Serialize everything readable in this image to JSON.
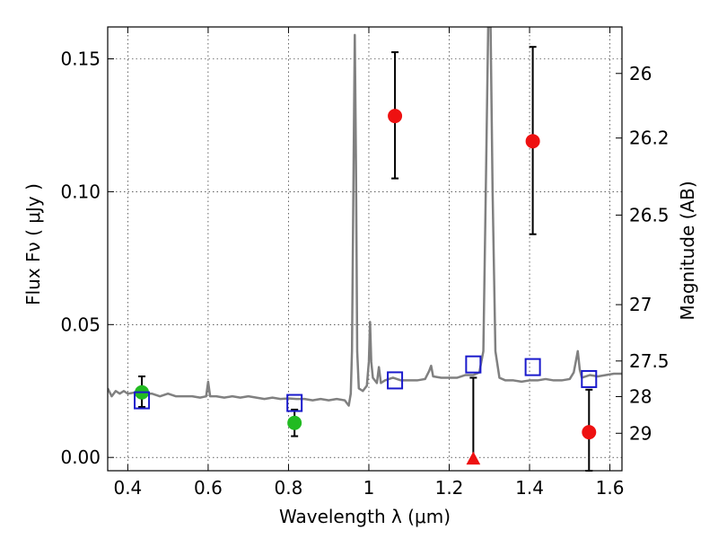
{
  "chart_data": {
    "type": "scatter",
    "xlabel": "Wavelength  λ (μm)",
    "ylabel": "Flux  Fν  ( μJy )",
    "y2label": "Magnitude (AB)",
    "xlim": [
      0.35,
      1.63
    ],
    "ylim": [
      -0.005,
      0.162
    ],
    "grid": true,
    "x_ticks": [
      0.4,
      0.6,
      0.8,
      1.0,
      1.2,
      1.4,
      1.6
    ],
    "x_tick_labels": [
      "0.4",
      "0.6",
      "0.8",
      "1",
      "1.2",
      "1.4",
      "1.6"
    ],
    "y_ticks": [
      0.0,
      0.05,
      0.1,
      0.15
    ],
    "y_tick_labels": [
      "0.00",
      "0.05",
      "0.10",
      "0.15"
    ],
    "y2_ticks": [
      {
        "label": "26",
        "flux": 0.1445
      },
      {
        "label": "26.2",
        "flux": 0.1202
      },
      {
        "label": "26.5",
        "flux": 0.0912
      },
      {
        "label": "27",
        "flux": 0.0575
      },
      {
        "label": "27.5",
        "flux": 0.0363
      },
      {
        "label": "28",
        "flux": 0.0229
      },
      {
        "label": "29",
        "flux": 0.0091
      }
    ],
    "series": [
      {
        "marker": "circle",
        "color": "#22bb22",
        "points": [
          {
            "x": 0.435,
            "y": 0.0245,
            "err_low": 0.019,
            "err_high": 0.0305
          },
          {
            "x": 0.815,
            "y": 0.013,
            "err_low": 0.008,
            "err_high": 0.018
          }
        ]
      },
      {
        "marker": "circle",
        "color": "#ee1111",
        "points": [
          {
            "x": 1.065,
            "y": 0.1285,
            "err_low": 0.105,
            "err_high": 0.1525
          },
          {
            "x": 1.408,
            "y": 0.119,
            "err_low": 0.084,
            "err_high": 0.1545
          },
          {
            "x": 1.548,
            "y": 0.0095,
            "err_low": -0.005,
            "err_high": 0.0255
          }
        ]
      },
      {
        "marker": "triangle",
        "color": "#ee1111",
        "points": [
          {
            "x": 1.26,
            "y": -0.0008,
            "err_low": -0.001,
            "err_high": 0.03
          }
        ]
      },
      {
        "marker": "square",
        "color": "#1a1acc",
        "points": [
          {
            "x": 0.435,
            "y": 0.0215
          },
          {
            "x": 0.815,
            "y": 0.0205
          },
          {
            "x": 1.065,
            "y": 0.029
          },
          {
            "x": 1.26,
            "y": 0.035
          },
          {
            "x": 1.408,
            "y": 0.034
          },
          {
            "x": 1.548,
            "y": 0.0295
          }
        ]
      }
    ],
    "model_spectrum": {
      "color": "#808080",
      "points": [
        [
          0.35,
          0.026
        ],
        [
          0.36,
          0.023
        ],
        [
          0.37,
          0.025
        ],
        [
          0.38,
          0.024
        ],
        [
          0.39,
          0.025
        ],
        [
          0.4,
          0.024
        ],
        [
          0.42,
          0.0245
        ],
        [
          0.44,
          0.024
        ],
        [
          0.46,
          0.024
        ],
        [
          0.48,
          0.023
        ],
        [
          0.5,
          0.024
        ],
        [
          0.52,
          0.023
        ],
        [
          0.54,
          0.023
        ],
        [
          0.56,
          0.023
        ],
        [
          0.58,
          0.0225
        ],
        [
          0.595,
          0.023
        ],
        [
          0.6,
          0.0285
        ],
        [
          0.605,
          0.023
        ],
        [
          0.62,
          0.023
        ],
        [
          0.64,
          0.0225
        ],
        [
          0.66,
          0.023
        ],
        [
          0.68,
          0.0225
        ],
        [
          0.7,
          0.023
        ],
        [
          0.72,
          0.0225
        ],
        [
          0.74,
          0.022
        ],
        [
          0.76,
          0.0225
        ],
        [
          0.78,
          0.022
        ],
        [
          0.8,
          0.0222
        ],
        [
          0.82,
          0.022
        ],
        [
          0.84,
          0.022
        ],
        [
          0.86,
          0.0215
        ],
        [
          0.88,
          0.022
        ],
        [
          0.9,
          0.0215
        ],
        [
          0.92,
          0.022
        ],
        [
          0.94,
          0.0215
        ],
        [
          0.95,
          0.0195
        ],
        [
          0.955,
          0.024
        ],
        [
          0.958,
          0.04
        ],
        [
          0.962,
          0.11
        ],
        [
          0.965,
          0.159
        ],
        [
          0.968,
          0.11
        ],
        [
          0.971,
          0.04
        ],
        [
          0.975,
          0.026
        ],
        [
          0.985,
          0.025
        ],
        [
          0.995,
          0.027
        ],
        [
          1.0,
          0.036
        ],
        [
          1.003,
          0.051
        ],
        [
          1.006,
          0.036
        ],
        [
          1.01,
          0.03
        ],
        [
          1.02,
          0.028
        ],
        [
          1.025,
          0.034
        ],
        [
          1.03,
          0.028
        ],
        [
          1.04,
          0.029
        ],
        [
          1.06,
          0.03
        ],
        [
          1.08,
          0.029
        ],
        [
          1.1,
          0.029
        ],
        [
          1.12,
          0.029
        ],
        [
          1.14,
          0.0295
        ],
        [
          1.15,
          0.0325
        ],
        [
          1.155,
          0.0345
        ],
        [
          1.16,
          0.0305
        ],
        [
          1.18,
          0.03
        ],
        [
          1.2,
          0.03
        ],
        [
          1.22,
          0.03
        ],
        [
          1.24,
          0.031
        ],
        [
          1.26,
          0.031
        ],
        [
          1.275,
          0.032
        ],
        [
          1.285,
          0.04
        ],
        [
          1.292,
          0.11
        ],
        [
          1.297,
          0.162
        ],
        [
          1.303,
          0.162
        ],
        [
          1.308,
          0.1
        ],
        [
          1.315,
          0.04
        ],
        [
          1.325,
          0.03
        ],
        [
          1.34,
          0.029
        ],
        [
          1.36,
          0.029
        ],
        [
          1.38,
          0.0285
        ],
        [
          1.4,
          0.029
        ],
        [
          1.42,
          0.029
        ],
        [
          1.44,
          0.0295
        ],
        [
          1.46,
          0.029
        ],
        [
          1.48,
          0.029
        ],
        [
          1.5,
          0.0295
        ],
        [
          1.51,
          0.032
        ],
        [
          1.515,
          0.036
        ],
        [
          1.52,
          0.04
        ],
        [
          1.525,
          0.033
        ],
        [
          1.53,
          0.03
        ],
        [
          1.55,
          0.031
        ],
        [
          1.57,
          0.0305
        ],
        [
          1.59,
          0.031
        ],
        [
          1.61,
          0.0315
        ],
        [
          1.63,
          0.0315
        ]
      ]
    }
  }
}
